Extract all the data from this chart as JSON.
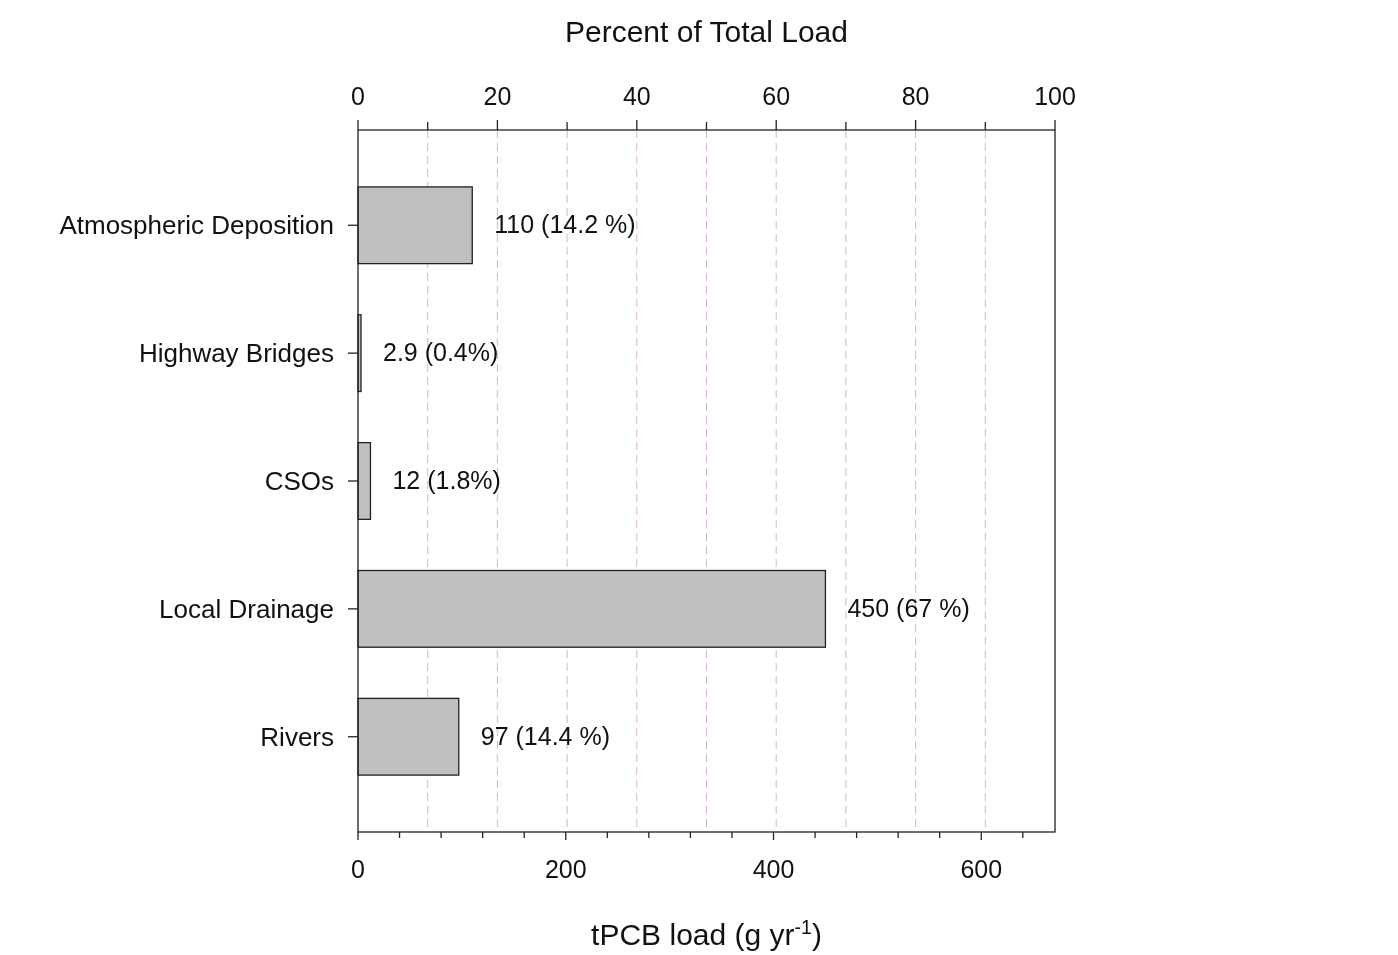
{
  "chart_data": {
    "type": "bar",
    "orientation": "horizontal",
    "categories": [
      "Atmospheric Deposition",
      "Highway Bridges",
      "CSOs",
      "Local Drainage",
      "Rivers"
    ],
    "values": [
      110,
      2.9,
      12,
      450,
      97
    ],
    "value_labels": [
      "110 (14.2 %)",
      "2.9 (0.4%)",
      "12 (1.8%)",
      "450 (67 %)",
      "97 (14.4 %)"
    ],
    "color": "#c0c0c0",
    "xlabel": "tPCB load (g yr$^{-1}$)",
    "x2label": "Percent of Total Load",
    "xlim": [
      0,
      671
    ],
    "xticks": [
      0,
      {
        "value": 40,
        "label": null
      },
      {
        "value": 80,
        "label": null
      },
      {
        "value": 120,
        "label": null
      },
      {
        "value": 160,
        "label": null
      },
      200,
      {
        "value": 240,
        "label": null
      },
      {
        "value": 280,
        "label": null
      },
      {
        "value": 320,
        "label": null
      },
      {
        "value": 360,
        "label": null
      },
      400,
      {
        "value": 440,
        "label": null
      },
      {
        "value": 480,
        "label": null
      },
      {
        "value": 520,
        "label": null
      },
      {
        "value": 560,
        "label": null
      },
      600,
      {
        "value": 640,
        "label": null
      }
    ],
    "x2lim": [
      0,
      100
    ],
    "x2ticks": [
      0,
      {
        "value": 10,
        "label": null
      },
      20,
      {
        "value": 30,
        "label": null
      },
      40,
      {
        "value": 50,
        "label": null
      },
      60,
      {
        "value": 70,
        "label": null
      },
      80,
      {
        "value": 90,
        "label": null
      },
      100
    ],
    "grid": "x"
  }
}
